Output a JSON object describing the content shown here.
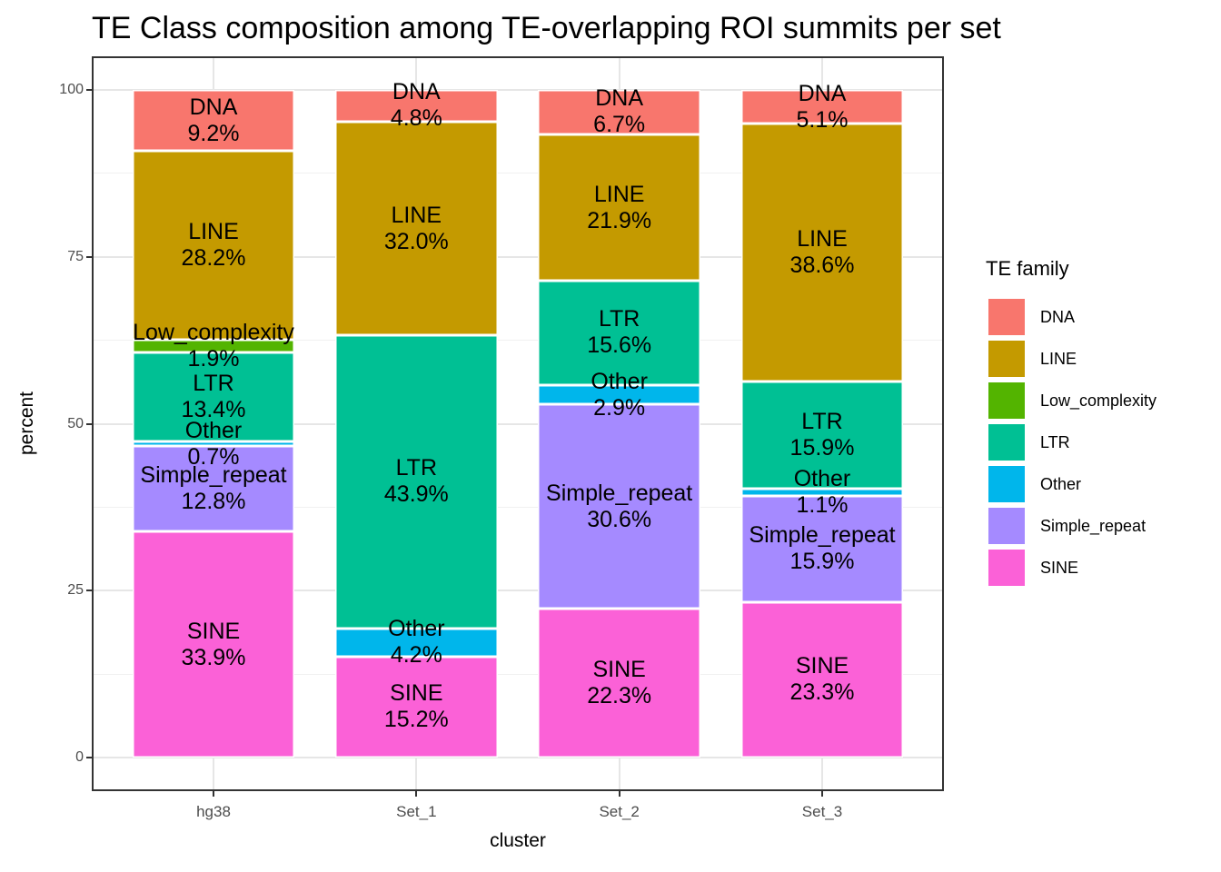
{
  "chart_data": {
    "type": "bar",
    "stacked": true,
    "normalized": "percent",
    "title": "TE Class composition among TE-overlapping ROI summits per set",
    "xlabel": "cluster",
    "ylabel": "percent",
    "ylim": [
      0,
      100
    ],
    "yticks": [
      0,
      25,
      50,
      75,
      100
    ],
    "ytick_labels": [
      "0",
      "25",
      "50",
      "75",
      "100"
    ],
    "grid": true,
    "legend_title": "TE family",
    "legend_position": "right",
    "categories": [
      "hg38",
      "Set_1",
      "Set_2",
      "Set_3"
    ],
    "families": [
      {
        "name": "DNA",
        "color": "#F8766D"
      },
      {
        "name": "LINE",
        "color": "#C49A00"
      },
      {
        "name": "Low_complexity",
        "color": "#53B400"
      },
      {
        "name": "LTR",
        "color": "#00C094"
      },
      {
        "name": "Other",
        "color": "#00B6EB"
      },
      {
        "name": "Simple_repeat",
        "color": "#A58AFF"
      },
      {
        "name": "SINE",
        "color": "#FB61D7"
      }
    ],
    "bars": [
      {
        "category": "hg38",
        "segments_top_to_bottom": [
          {
            "family": "DNA",
            "value": 9.2,
            "label": "DNA",
            "pct_label": "9.2%"
          },
          {
            "family": "LINE",
            "value": 28.2,
            "label": "LINE",
            "pct_label": "28.2%"
          },
          {
            "family": "Low_complexity",
            "value": 1.9,
            "label": "Low_complexity",
            "pct_label": "1.9%"
          },
          {
            "family": "LTR",
            "value": 13.4,
            "label": "LTR",
            "pct_label": "13.4%"
          },
          {
            "family": "Other",
            "value": 0.7,
            "label": "Other",
            "pct_label": "0.7%"
          },
          {
            "family": "Simple_repeat",
            "value": 12.8,
            "label": "Simple_repeat",
            "pct_label": "12.8%"
          },
          {
            "family": "SINE",
            "value": 33.9,
            "label": "SINE",
            "pct_label": "33.9%"
          }
        ]
      },
      {
        "category": "Set_1",
        "segments_top_to_bottom": [
          {
            "family": "DNA",
            "value": 4.8,
            "label": "DNA",
            "pct_label": "4.8%"
          },
          {
            "family": "LINE",
            "value": 32.0,
            "label": "LINE",
            "pct_label": "32.0%"
          },
          {
            "family": "LTR",
            "value": 43.9,
            "label": "LTR",
            "pct_label": "43.9%"
          },
          {
            "family": "Other",
            "value": 4.2,
            "label": "Other",
            "pct_label": "4.2%"
          },
          {
            "family": "SINE",
            "value": 15.2,
            "label": "SINE",
            "pct_label": "15.2%"
          }
        ]
      },
      {
        "category": "Set_2",
        "segments_top_to_bottom": [
          {
            "family": "DNA",
            "value": 6.7,
            "label": "DNA",
            "pct_label": "6.7%"
          },
          {
            "family": "LINE",
            "value": 21.9,
            "label": "LINE",
            "pct_label": "21.9%"
          },
          {
            "family": "LTR",
            "value": 15.6,
            "label": "LTR",
            "pct_label": "15.6%"
          },
          {
            "family": "Other",
            "value": 2.9,
            "label": "Other",
            "pct_label": "2.9%"
          },
          {
            "family": "Simple_repeat",
            "value": 30.6,
            "label": "Simple_repeat",
            "pct_label": "30.6%"
          },
          {
            "family": "SINE",
            "value": 22.3,
            "label": "SINE",
            "pct_label": "22.3%"
          }
        ]
      },
      {
        "category": "Set_3",
        "segments_top_to_bottom": [
          {
            "family": "DNA",
            "value": 5.1,
            "label": "DNA",
            "pct_label": "5.1%"
          },
          {
            "family": "LINE",
            "value": 38.6,
            "label": "LINE",
            "pct_label": "38.6%"
          },
          {
            "family": "LTR",
            "value": 15.9,
            "label": "LTR",
            "pct_label": "15.9%"
          },
          {
            "family": "Other",
            "value": 1.1,
            "label": "Other",
            "pct_label": "1.1%"
          },
          {
            "family": "Simple_repeat",
            "value": 15.9,
            "label": "Simple_repeat",
            "pct_label": "15.9%"
          },
          {
            "family": "SINE",
            "value": 23.3,
            "label": "SINE",
            "pct_label": "23.3%"
          }
        ]
      }
    ]
  }
}
